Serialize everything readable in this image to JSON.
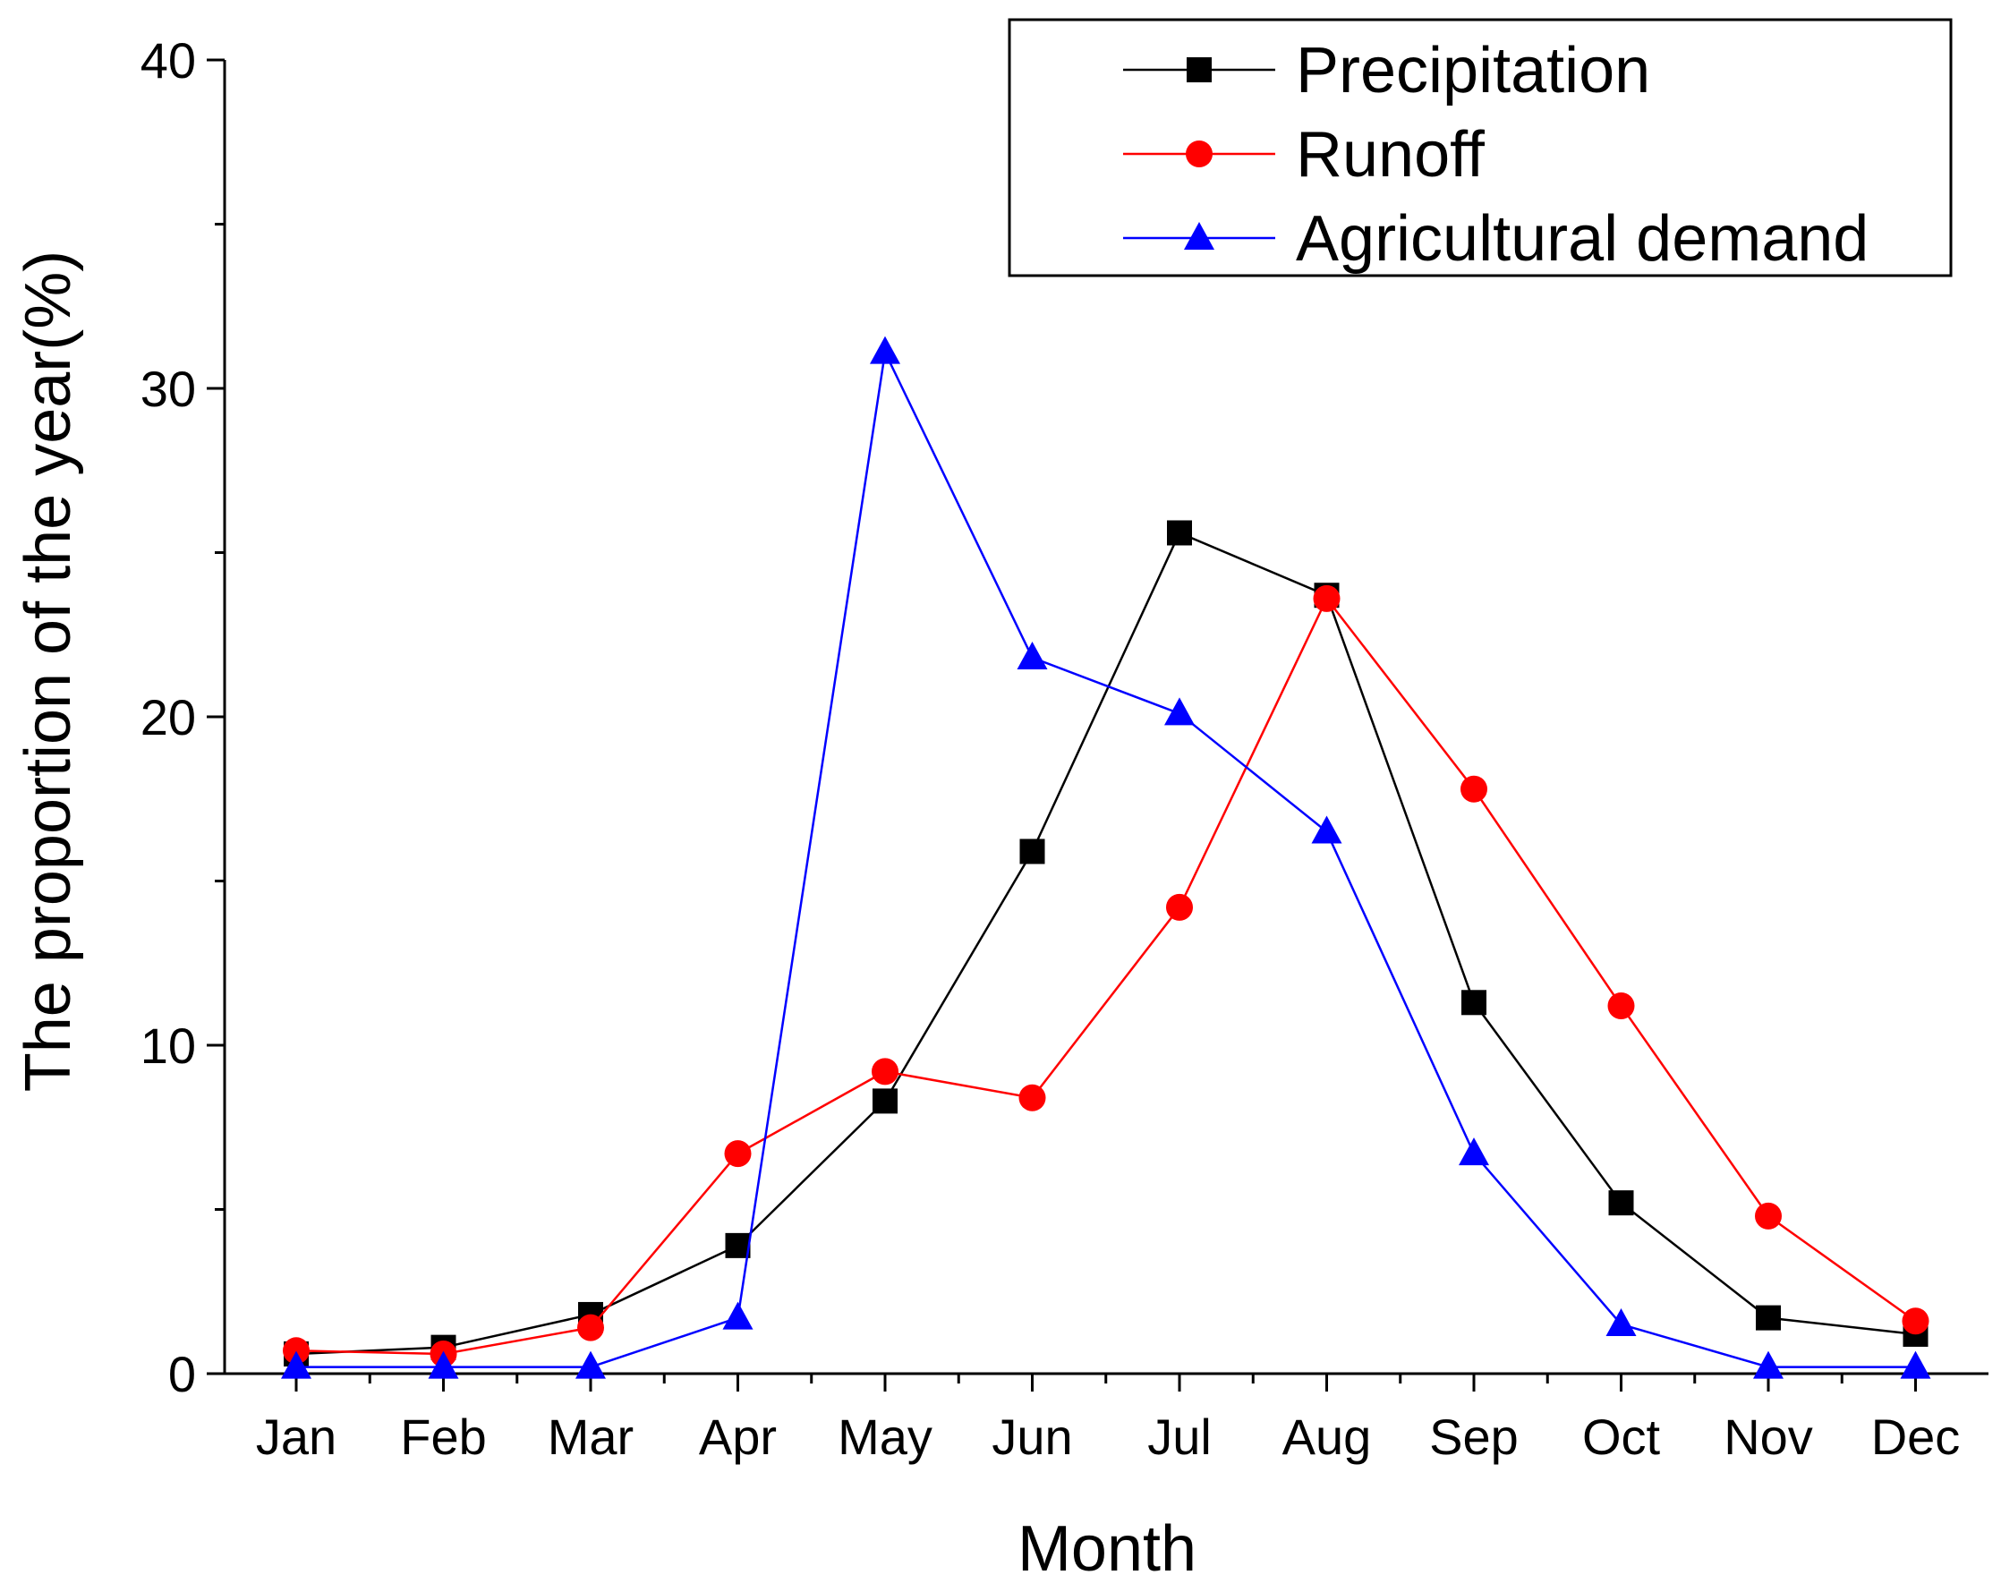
{
  "chart_data": {
    "type": "line",
    "title": "",
    "xlabel": "Month",
    "ylabel": "The proportion of the year(%)",
    "categories": [
      "Jan",
      "Feb",
      "Mar",
      "Apr",
      "May",
      "Jun",
      "Jul",
      "Aug",
      "Sep",
      "Oct",
      "Nov",
      "Dec"
    ],
    "ylim": [
      0,
      40
    ],
    "yticks": [
      0,
      10,
      20,
      30,
      40
    ],
    "y_tick_labels": [
      "0",
      "10",
      "20",
      "30",
      "40"
    ],
    "grid": false,
    "legend_position": "top-right",
    "series": [
      {
        "name": "Precipitation",
        "color": "#000000",
        "marker": "square",
        "values": [
          0.6,
          0.8,
          1.8,
          3.9,
          8.3,
          15.9,
          25.6,
          23.7,
          11.3,
          5.2,
          1.7,
          1.2
        ]
      },
      {
        "name": "Runoff",
        "color": "#ff0000",
        "marker": "circle",
        "values": [
          0.7,
          0.6,
          1.4,
          6.7,
          9.2,
          8.4,
          14.2,
          23.6,
          17.8,
          11.2,
          4.8,
          1.6
        ]
      },
      {
        "name": "Agricultural demand",
        "color": "#0000ff",
        "marker": "triangle",
        "values": [
          0.2,
          0.2,
          0.2,
          1.7,
          31.1,
          21.8,
          20.1,
          16.5,
          6.7,
          1.5,
          0.2,
          0.2
        ]
      }
    ]
  }
}
